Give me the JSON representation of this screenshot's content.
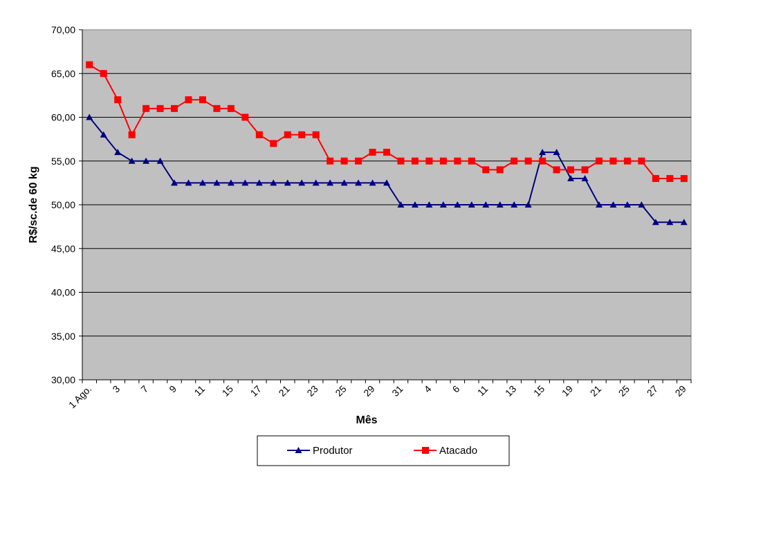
{
  "chart_data": {
    "type": "line",
    "title": "",
    "xlabel": "Mês",
    "ylabel": "R$/sc.de 60 kg",
    "ylim": [
      30,
      70
    ],
    "ystep": 5,
    "y_tick_labels": [
      "30,00",
      "35,00",
      "40,00",
      "45,00",
      "50,00",
      "55,00",
      "60,00",
      "65,00",
      "70,00"
    ],
    "grid": true,
    "plot_background": "#c0c0c0",
    "legend_position": "bottom",
    "x_tick_labels": [
      "1 Ago.",
      "3",
      "7",
      "9",
      "11",
      "15",
      "17",
      "21",
      "23",
      "25",
      "29",
      "31",
      "4",
      "6",
      "11",
      "13",
      "15",
      "19",
      "21",
      "25",
      "27",
      "29"
    ],
    "x_tick_label_every": 2,
    "series": [
      {
        "name": "Produtor",
        "color": "#000080",
        "marker": "triangle",
        "values": [
          60,
          58,
          56,
          55,
          55,
          55,
          52.5,
          52.5,
          52.5,
          52.5,
          52.5,
          52.5,
          52.5,
          52.5,
          52.5,
          52.5,
          52.5,
          52.5,
          52.5,
          52.5,
          52.5,
          52.5,
          50,
          50,
          50,
          50,
          50,
          50,
          50,
          50,
          50,
          50,
          56,
          56,
          53,
          53,
          50,
          50,
          50,
          50,
          48,
          48,
          48
        ]
      },
      {
        "name": "Atacado",
        "color": "#ff0000",
        "marker": "square",
        "values": [
          66,
          65,
          62,
          58,
          61,
          61,
          61,
          62,
          62,
          61,
          61,
          60,
          58,
          57,
          58,
          58,
          58,
          55,
          55,
          55,
          56,
          56,
          55,
          55,
          55,
          55,
          55,
          55,
          54,
          54,
          55,
          55,
          55,
          54,
          54,
          54,
          55,
          55,
          55,
          55,
          53,
          53,
          53
        ]
      }
    ]
  }
}
